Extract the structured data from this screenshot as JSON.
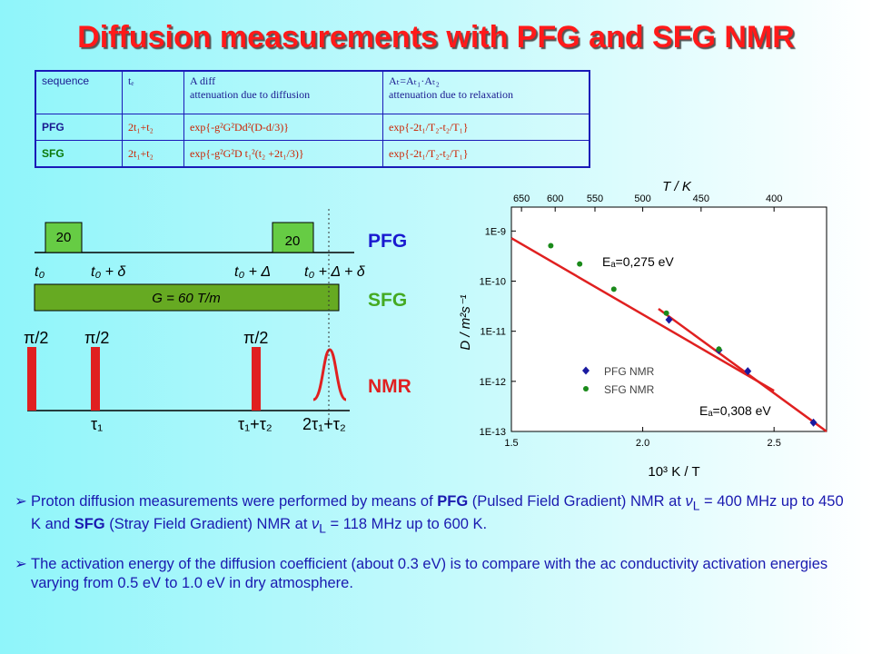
{
  "title": "Diffusion measurements with PFG and SFG NMR",
  "table": {
    "header": [
      [
        "sequence"
      ],
      [
        "tₑ"
      ],
      [
        "A diff",
        "attenuation due to diffusion"
      ],
      [
        "Aₜ=Aₜ₁·Aₜ₂",
        "attenuation due to relaxation"
      ]
    ],
    "rows": [
      [
        "PFG",
        "2t₁+t₂",
        "exp{-g²G²Dd²(D-d/3)}",
        "exp{-2t₁/T₂-t₂/T₁}"
      ],
      [
        "SFG",
        "2t₁+t₂",
        "exp{-g²G²D t₁²(t₂ +2t₁/3)}",
        "exp{-2t₁/T₂-t₂/T₁}"
      ]
    ]
  },
  "diagram": {
    "pfg_pulses": [
      "20",
      "20"
    ],
    "times": [
      "t₀",
      "t₀ + δ",
      "t₀ + Δ",
      "t₀ + Δ + δ"
    ],
    "gradient": "G = 60 T/m",
    "labels": [
      "PFG",
      "SFG",
      "NMR"
    ],
    "pulses": [
      "π/2",
      "π/2",
      "π/2"
    ],
    "taus": [
      "τ₁",
      "τ₁+τ₂",
      "2τ₁+τ₂"
    ]
  },
  "chart_data": {
    "type": "scatter",
    "log_y": true,
    "x2label": "T / K",
    "xlabel": "10³ K / T",
    "ylabel": "D / m²s⁻¹",
    "xlim": [
      1.5,
      2.7
    ],
    "xticks": [
      1.5,
      {
        "value": 2,
        "label": "2.0"
      },
      2.5
    ],
    "x2ticks": [
      650,
      600,
      550,
      500,
      450,
      400
    ],
    "ylim": [
      1e-13,
      3e-09
    ],
    "yticks": [
      {
        "value": 1e-13,
        "label": "1E-13"
      },
      {
        "value": 1e-12,
        "label": "1E-12"
      },
      {
        "value": 1e-11,
        "label": "1E-11"
      },
      {
        "value": 1e-10,
        "label": "1E-10"
      },
      {
        "value": 1e-09,
        "label": "1E-9"
      }
    ],
    "series": [
      {
        "name": "PFG NMR",
        "color": "#1a1aa0",
        "marker": "diamond",
        "x": [
          2.1,
          2.29,
          2.4,
          2.65
        ],
        "values": [
          1.7e-11,
          4.2e-12,
          1.6e-12,
          1.5e-13
        ]
      },
      {
        "name": "SFG NMR",
        "color": "#1a8a1a",
        "marker": "circle",
        "x": [
          1.65,
          1.76,
          1.89,
          2.09,
          2.29
        ],
        "values": [
          5.1e-10,
          2.2e-10,
          6.9e-11,
          2.3e-11,
          4.4e-12
        ]
      }
    ],
    "fits": [
      {
        "color": "#e02020",
        "x": [
          1.5,
          2.5
        ],
        "values": [
          7.2e-10,
          6.5e-13
        ]
      },
      {
        "color": "#e02020",
        "x": [
          2.06,
          2.7
        ],
        "values": [
          2.8e-11,
          1e-13
        ]
      }
    ],
    "annotations": [
      "Eₐ=0,275 eV",
      "Eₐ=0,308 eV"
    ]
  },
  "bullets": [
    {
      "runs": [
        "Proton diffusion measurements were performed by means of ",
        "PFG",
        " (Pulsed Field Gradient) NMR at ",
        "ν",
        "L",
        " = 400 MHz up to 450 K and ",
        "SFG",
        " (Stray Field Gradient) NMR at ",
        "ν",
        "L",
        " = 118 MHz up to 600 K."
      ],
      "styles": [
        "",
        "b",
        "",
        "i",
        "sub",
        "",
        "b",
        "",
        "i",
        "sub",
        ""
      ]
    },
    {
      "runs": [
        "The activation energy of the diffusion coefficient (about 0.3 eV) is to compare with the ac conductivity activation energies varying from 0.5 eV to 1.0 eV in dry atmosphere."
      ],
      "styles": [
        ""
      ]
    }
  ]
}
